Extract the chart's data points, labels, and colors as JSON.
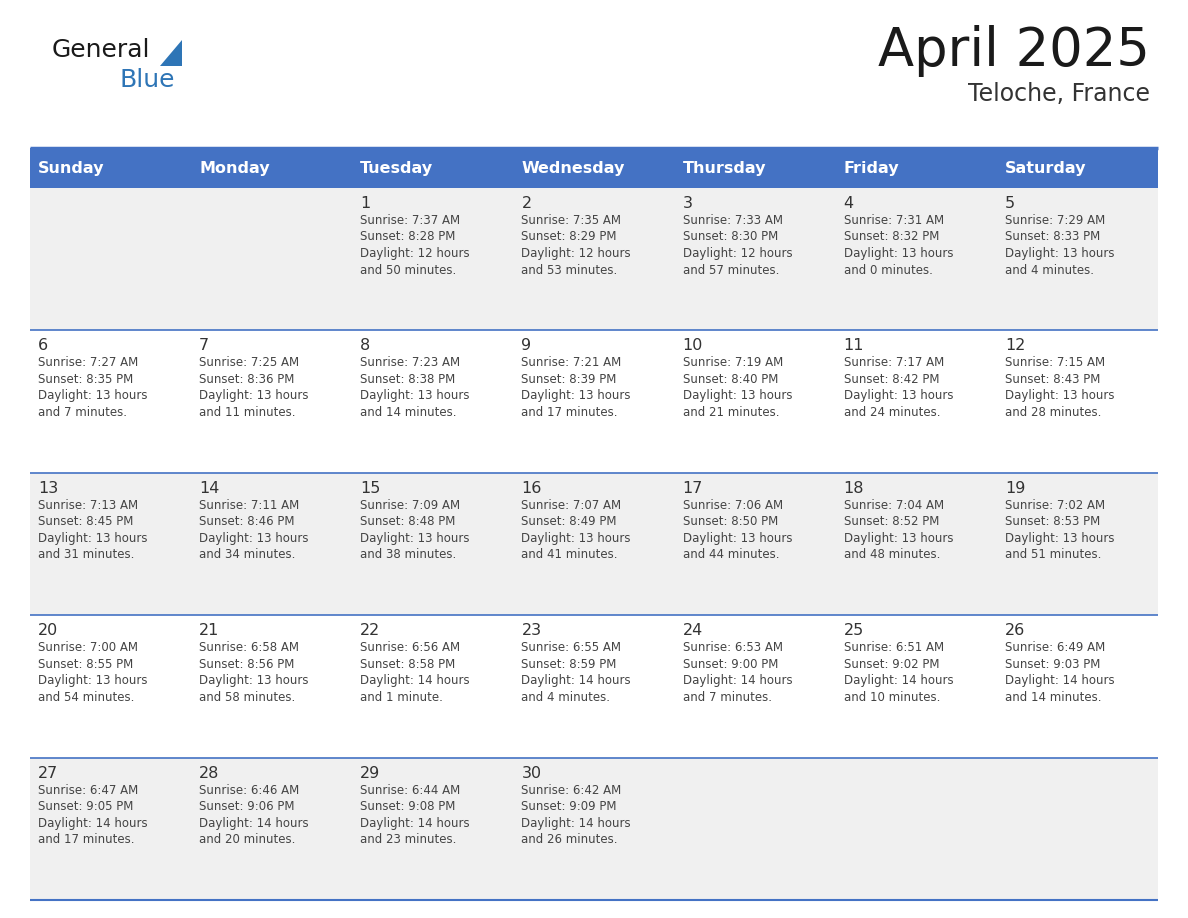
{
  "title": "April 2025",
  "subtitle": "Teloche, France",
  "header_bg": "#4472C4",
  "header_text_color": "#FFFFFF",
  "cell_bg_odd": "#F0F0F0",
  "cell_bg_even": "#FFFFFF",
  "border_color": "#4472C4",
  "day_number_color": "#333333",
  "cell_text_color": "#444444",
  "days_of_week": [
    "Sunday",
    "Monday",
    "Tuesday",
    "Wednesday",
    "Thursday",
    "Friday",
    "Saturday"
  ],
  "weeks": [
    [
      {
        "day": "",
        "sunrise": "",
        "sunset": "",
        "daylight": ""
      },
      {
        "day": "",
        "sunrise": "",
        "sunset": "",
        "daylight": ""
      },
      {
        "day": "1",
        "sunrise": "Sunrise: 7:37 AM",
        "sunset": "Sunset: 8:28 PM",
        "daylight": "Daylight: 12 hours\nand 50 minutes."
      },
      {
        "day": "2",
        "sunrise": "Sunrise: 7:35 AM",
        "sunset": "Sunset: 8:29 PM",
        "daylight": "Daylight: 12 hours\nand 53 minutes."
      },
      {
        "day": "3",
        "sunrise": "Sunrise: 7:33 AM",
        "sunset": "Sunset: 8:30 PM",
        "daylight": "Daylight: 12 hours\nand 57 minutes."
      },
      {
        "day": "4",
        "sunrise": "Sunrise: 7:31 AM",
        "sunset": "Sunset: 8:32 PM",
        "daylight": "Daylight: 13 hours\nand 0 minutes."
      },
      {
        "day": "5",
        "sunrise": "Sunrise: 7:29 AM",
        "sunset": "Sunset: 8:33 PM",
        "daylight": "Daylight: 13 hours\nand 4 minutes."
      }
    ],
    [
      {
        "day": "6",
        "sunrise": "Sunrise: 7:27 AM",
        "sunset": "Sunset: 8:35 PM",
        "daylight": "Daylight: 13 hours\nand 7 minutes."
      },
      {
        "day": "7",
        "sunrise": "Sunrise: 7:25 AM",
        "sunset": "Sunset: 8:36 PM",
        "daylight": "Daylight: 13 hours\nand 11 minutes."
      },
      {
        "day": "8",
        "sunrise": "Sunrise: 7:23 AM",
        "sunset": "Sunset: 8:38 PM",
        "daylight": "Daylight: 13 hours\nand 14 minutes."
      },
      {
        "day": "9",
        "sunrise": "Sunrise: 7:21 AM",
        "sunset": "Sunset: 8:39 PM",
        "daylight": "Daylight: 13 hours\nand 17 minutes."
      },
      {
        "day": "10",
        "sunrise": "Sunrise: 7:19 AM",
        "sunset": "Sunset: 8:40 PM",
        "daylight": "Daylight: 13 hours\nand 21 minutes."
      },
      {
        "day": "11",
        "sunrise": "Sunrise: 7:17 AM",
        "sunset": "Sunset: 8:42 PM",
        "daylight": "Daylight: 13 hours\nand 24 minutes."
      },
      {
        "day": "12",
        "sunrise": "Sunrise: 7:15 AM",
        "sunset": "Sunset: 8:43 PM",
        "daylight": "Daylight: 13 hours\nand 28 minutes."
      }
    ],
    [
      {
        "day": "13",
        "sunrise": "Sunrise: 7:13 AM",
        "sunset": "Sunset: 8:45 PM",
        "daylight": "Daylight: 13 hours\nand 31 minutes."
      },
      {
        "day": "14",
        "sunrise": "Sunrise: 7:11 AM",
        "sunset": "Sunset: 8:46 PM",
        "daylight": "Daylight: 13 hours\nand 34 minutes."
      },
      {
        "day": "15",
        "sunrise": "Sunrise: 7:09 AM",
        "sunset": "Sunset: 8:48 PM",
        "daylight": "Daylight: 13 hours\nand 38 minutes."
      },
      {
        "day": "16",
        "sunrise": "Sunrise: 7:07 AM",
        "sunset": "Sunset: 8:49 PM",
        "daylight": "Daylight: 13 hours\nand 41 minutes."
      },
      {
        "day": "17",
        "sunrise": "Sunrise: 7:06 AM",
        "sunset": "Sunset: 8:50 PM",
        "daylight": "Daylight: 13 hours\nand 44 minutes."
      },
      {
        "day": "18",
        "sunrise": "Sunrise: 7:04 AM",
        "sunset": "Sunset: 8:52 PM",
        "daylight": "Daylight: 13 hours\nand 48 minutes."
      },
      {
        "day": "19",
        "sunrise": "Sunrise: 7:02 AM",
        "sunset": "Sunset: 8:53 PM",
        "daylight": "Daylight: 13 hours\nand 51 minutes."
      }
    ],
    [
      {
        "day": "20",
        "sunrise": "Sunrise: 7:00 AM",
        "sunset": "Sunset: 8:55 PM",
        "daylight": "Daylight: 13 hours\nand 54 minutes."
      },
      {
        "day": "21",
        "sunrise": "Sunrise: 6:58 AM",
        "sunset": "Sunset: 8:56 PM",
        "daylight": "Daylight: 13 hours\nand 58 minutes."
      },
      {
        "day": "22",
        "sunrise": "Sunrise: 6:56 AM",
        "sunset": "Sunset: 8:58 PM",
        "daylight": "Daylight: 14 hours\nand 1 minute."
      },
      {
        "day": "23",
        "sunrise": "Sunrise: 6:55 AM",
        "sunset": "Sunset: 8:59 PM",
        "daylight": "Daylight: 14 hours\nand 4 minutes."
      },
      {
        "day": "24",
        "sunrise": "Sunrise: 6:53 AM",
        "sunset": "Sunset: 9:00 PM",
        "daylight": "Daylight: 14 hours\nand 7 minutes."
      },
      {
        "day": "25",
        "sunrise": "Sunrise: 6:51 AM",
        "sunset": "Sunset: 9:02 PM",
        "daylight": "Daylight: 14 hours\nand 10 minutes."
      },
      {
        "day": "26",
        "sunrise": "Sunrise: 6:49 AM",
        "sunset": "Sunset: 9:03 PM",
        "daylight": "Daylight: 14 hours\nand 14 minutes."
      }
    ],
    [
      {
        "day": "27",
        "sunrise": "Sunrise: 6:47 AM",
        "sunset": "Sunset: 9:05 PM",
        "daylight": "Daylight: 14 hours\nand 17 minutes."
      },
      {
        "day": "28",
        "sunrise": "Sunrise: 6:46 AM",
        "sunset": "Sunset: 9:06 PM",
        "daylight": "Daylight: 14 hours\nand 20 minutes."
      },
      {
        "day": "29",
        "sunrise": "Sunrise: 6:44 AM",
        "sunset": "Sunset: 9:08 PM",
        "daylight": "Daylight: 14 hours\nand 23 minutes."
      },
      {
        "day": "30",
        "sunrise": "Sunrise: 6:42 AM",
        "sunset": "Sunset: 9:09 PM",
        "daylight": "Daylight: 14 hours\nand 26 minutes."
      },
      {
        "day": "",
        "sunrise": "",
        "sunset": "",
        "daylight": ""
      },
      {
        "day": "",
        "sunrise": "",
        "sunset": "",
        "daylight": ""
      },
      {
        "day": "",
        "sunrise": "",
        "sunset": "",
        "daylight": ""
      }
    ]
  ]
}
